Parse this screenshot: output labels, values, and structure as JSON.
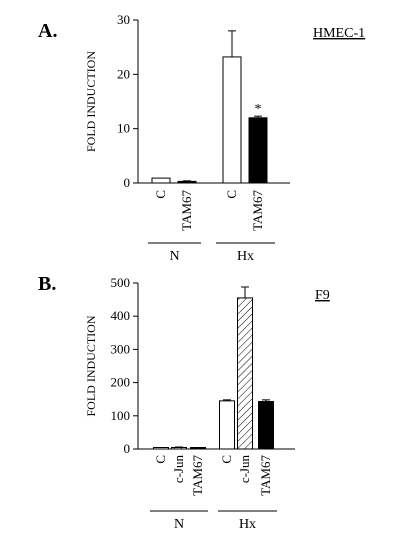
{
  "chart_data": [
    {
      "type": "bar",
      "panel_label": "A.",
      "cell_line": "HMEC-1",
      "ylabel": "FOLD INDUCTION",
      "ylim": [
        0,
        30
      ],
      "yticks": [
        0,
        10,
        20,
        30
      ],
      "categories": [
        "C",
        "TAM67",
        "C",
        "TAM67"
      ],
      "groups": [
        {
          "label": "N",
          "members": [
            0,
            1
          ]
        },
        {
          "label": "Hx",
          "members": [
            2,
            3
          ]
        }
      ],
      "values": [
        0.9,
        0.3,
        23.2,
        12.0
      ],
      "errors": [
        0,
        0.1,
        4.8,
        0.3
      ],
      "fills": [
        "white",
        "black",
        "white",
        "black"
      ],
      "annotations": [
        {
          "index": 3,
          "text": "*"
        }
      ],
      "grid": false
    },
    {
      "type": "bar",
      "panel_label": "B.",
      "cell_line": "F9",
      "ylabel": "FOLD INDUCTION",
      "ylim": [
        0,
        500
      ],
      "yticks": [
        0,
        100,
        200,
        300,
        400,
        500
      ],
      "categories": [
        "C",
        "c-Jun",
        "TAM67",
        "C",
        "c-Jun",
        "TAM67"
      ],
      "groups": [
        {
          "label": "N",
          "members": [
            0,
            1,
            2
          ]
        },
        {
          "label": "Hx",
          "members": [
            3,
            4,
            5
          ]
        }
      ],
      "values": [
        1,
        3,
        2,
        145,
        455,
        143
      ],
      "errors": [
        0,
        3,
        1,
        3,
        33,
        5
      ],
      "fills": [
        "white",
        "hatched",
        "black",
        "white",
        "hatched",
        "black"
      ],
      "grid": false
    }
  ]
}
